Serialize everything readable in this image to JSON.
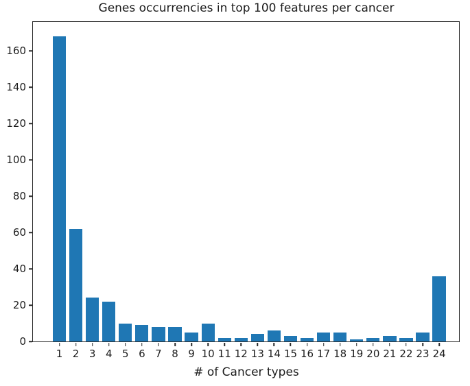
{
  "title": "Genes occurrencies in top 100 features per cancer",
  "chart_data": {
    "type": "bar",
    "title": "Genes occurrencies in top 100 features per cancer",
    "xlabel": "# of Cancer types",
    "ylabel": "",
    "categories": [
      1,
      2,
      3,
      4,
      5,
      6,
      7,
      8,
      9,
      10,
      11,
      12,
      13,
      14,
      15,
      16,
      17,
      18,
      19,
      20,
      21,
      22,
      23,
      24
    ],
    "values": [
      168,
      62,
      24,
      22,
      10,
      9,
      8,
      8,
      5,
      10,
      2,
      2,
      4,
      6,
      3,
      2,
      5,
      5,
      1,
      2,
      3,
      2,
      5,
      36
    ],
    "yticks": [
      0,
      20,
      40,
      60,
      80,
      100,
      120,
      140,
      160
    ],
    "ylim": [
      0,
      176
    ],
    "xlim": [
      -0.6,
      25.2
    ],
    "bar_width_units": 0.8,
    "bar_color": "#1f77b4",
    "grid": false,
    "legend": "none",
    "frame": true
  },
  "colors": {
    "bar": "#1f77b4",
    "text": "#1c1c1c",
    "spine": "#2b2b2b",
    "background": "#ffffff"
  }
}
